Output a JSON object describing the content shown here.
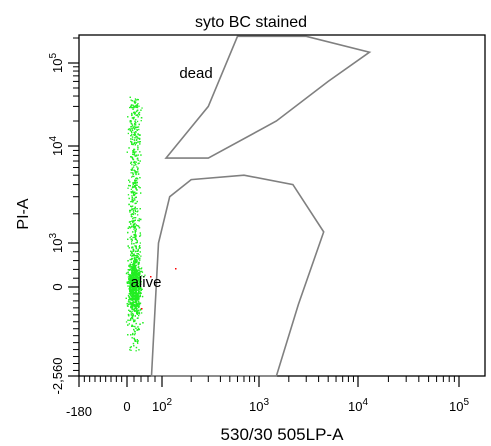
{
  "chart_data": {
    "type": "scatter",
    "title": "syto BC stained",
    "xlabel": "530/30 505LP-A",
    "ylabel": "PI-A",
    "x_scale": "biexponential",
    "y_scale": "biexponential",
    "xlim": [
      -180,
      200000
    ],
    "ylim": [
      -2560,
      200000
    ],
    "x_ticks": [
      {
        "value": -180,
        "label": "-180"
      },
      {
        "value": 0,
        "label": "0"
      },
      {
        "value": 100,
        "label": "10",
        "exp": "2"
      },
      {
        "value": 1000,
        "label": "10",
        "exp": "3"
      },
      {
        "value": 10000,
        "label": "10",
        "exp": "4"
      },
      {
        "value": 100000,
        "label": "10",
        "exp": "5"
      }
    ],
    "y_ticks": [
      {
        "value": -2560,
        "label": "-2,560"
      },
      {
        "value": 0,
        "label": "0"
      },
      {
        "value": 1000,
        "label": "10",
        "exp": "3"
      },
      {
        "value": 10000,
        "label": "10",
        "exp": "4"
      },
      {
        "value": 100000,
        "label": "10",
        "exp": "5"
      }
    ],
    "point_color": "#22ee22",
    "gate_color": "#808080",
    "series": [
      {
        "points_approx": 2600,
        "x_center": 20,
        "x_range": [
          -40,
          90
        ],
        "y_center": 0,
        "y_range": [
          -2200,
          40000
        ]
      }
    ],
    "gates": [
      {
        "name": "dead",
        "polygon": [
          [
            110,
            7500
          ],
          [
            300,
            30000
          ],
          [
            600,
            210000
          ],
          [
            3000,
            210000
          ],
          [
            13000,
            135000
          ],
          [
            5000,
            60000
          ],
          [
            1500,
            20000
          ],
          [
            300,
            7500
          ]
        ]
      },
      {
        "name": "alive",
        "polygon": [
          [
            70,
            -2560
          ],
          [
            90,
            1000
          ],
          [
            120,
            3000
          ],
          [
            200,
            4500
          ],
          [
            700,
            5000
          ],
          [
            2200,
            4000
          ],
          [
            4500,
            1300
          ],
          [
            2500,
            -500
          ],
          [
            1500,
            -2560
          ]
        ]
      }
    ],
    "outlier_color": "#ff0000"
  }
}
